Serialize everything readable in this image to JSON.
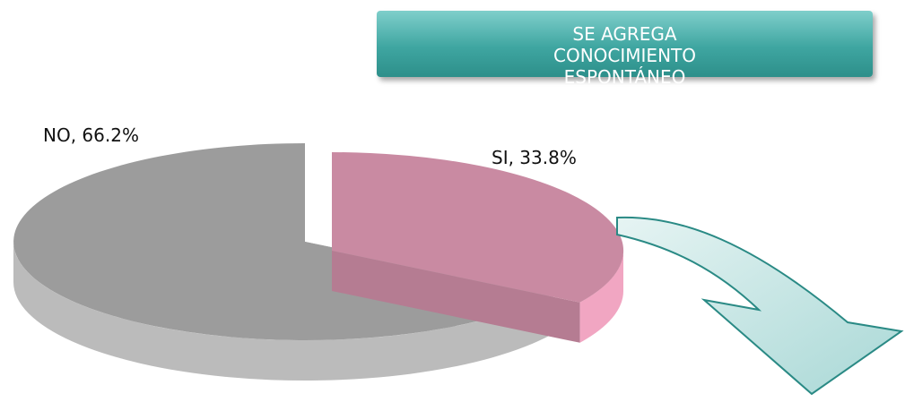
{
  "chart_data": {
    "type": "pie",
    "annotation": "SE AGREGA CONOCIMIENTO ESPONTÁNEO",
    "categories": [
      "NO",
      "SI"
    ],
    "values": [
      66.2,
      33.8
    ],
    "value_labels": [
      "NO, 66.2%",
      "SI, 33.8%"
    ],
    "colors": [
      "#9c9c9c",
      "#c98aa2"
    ]
  }
}
